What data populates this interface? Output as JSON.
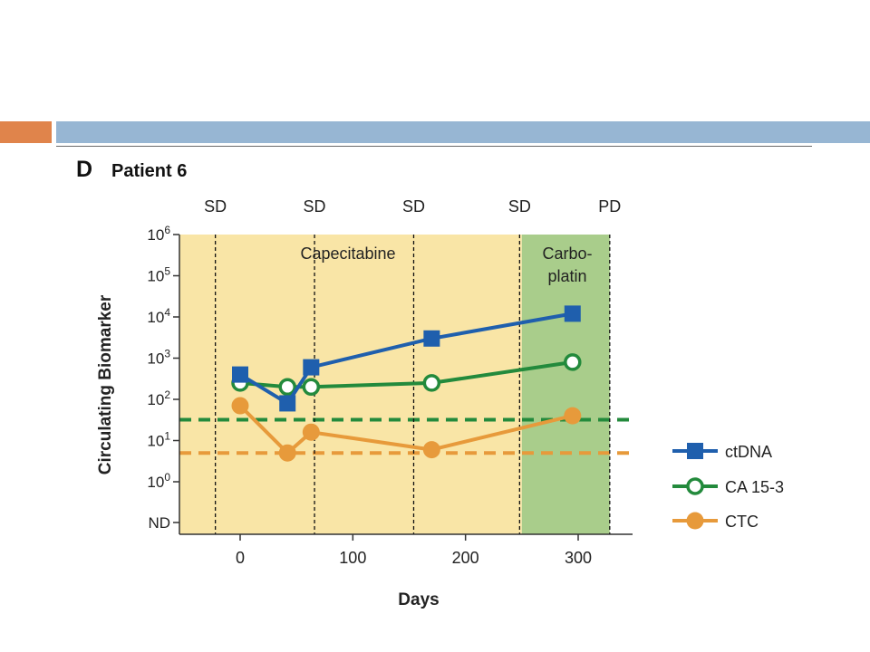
{
  "panel": {
    "letter": "D",
    "title": "Patient 6"
  },
  "colors": {
    "ctdna": "#1f5fad",
    "ca153": "#238a3c",
    "ctc": "#e79a3b",
    "capecitabine_bg": "#f9e5a6",
    "carboplatin_bg": "#a9cd8b"
  },
  "chart_data": {
    "type": "line",
    "xlabel": "Days",
    "ylabel": "Circulating Biomarker",
    "xlim": [
      -55,
      350
    ],
    "x_ticks": [
      0,
      100,
      200,
      300
    ],
    "y_scale": "log",
    "y_ticks": [
      "ND",
      "10^0",
      "10^1",
      "10^2",
      "10^3",
      "10^4",
      "10^5",
      "10^6"
    ],
    "y_tick_exponents": [
      0,
      1,
      2,
      3,
      4,
      5,
      6
    ],
    "regions": [
      {
        "label": "Capecitabine",
        "start": -55,
        "end": 250
      },
      {
        "label": "Carbo-\nplatin",
        "label_lines": [
          "Carbo-",
          "platin"
        ],
        "start": 250,
        "end": 328
      }
    ],
    "response_markers": [
      {
        "day": -22,
        "label": "SD"
      },
      {
        "day": 66,
        "label": "SD"
      },
      {
        "day": 154,
        "label": "SD"
      },
      {
        "day": 248,
        "label": "SD"
      },
      {
        "day": 328,
        "label": "PD"
      }
    ],
    "series": [
      {
        "name": "ctDNA",
        "marker": "square",
        "x": [
          0,
          42,
          63,
          170,
          295
        ],
        "y": [
          400,
          80,
          600,
          3000,
          12000
        ]
      },
      {
        "name": "CA 15-3",
        "marker": "open-circle",
        "x": [
          0,
          42,
          63,
          170,
          295
        ],
        "y": [
          250,
          200,
          200,
          250,
          800
        ]
      },
      {
        "name": "CTC",
        "marker": "filled-circle",
        "x": [
          0,
          42,
          63,
          170,
          295
        ],
        "y": [
          70,
          5,
          16,
          6,
          40
        ]
      }
    ],
    "thresholds": [
      {
        "series": "CA 15-3",
        "y": 32,
        "style": "dashed"
      },
      {
        "series": "CTC",
        "y": 5,
        "style": "dashed"
      }
    ],
    "legend_position": "right"
  }
}
